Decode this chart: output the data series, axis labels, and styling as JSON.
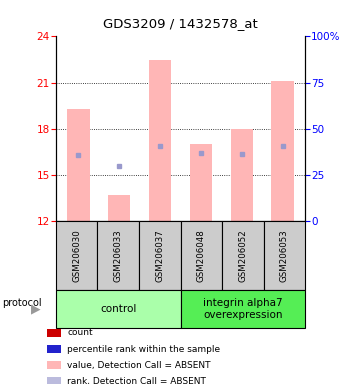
{
  "title": "GDS3209 / 1432578_at",
  "samples": [
    "GSM206030",
    "GSM206033",
    "GSM206037",
    "GSM206048",
    "GSM206052",
    "GSM206053"
  ],
  "bar_tops": [
    19.3,
    13.7,
    22.5,
    17.0,
    18.0,
    21.1
  ],
  "bar_bottom": 12,
  "blue_markers": [
    16.3,
    15.55,
    16.9,
    16.4,
    16.35,
    16.9
  ],
  "bar_color": "#FFB6B6",
  "blue_color": "#9999CC",
  "ylim_left": [
    12,
    24
  ],
  "ylim_right": [
    0,
    100
  ],
  "yticks_left": [
    12,
    15,
    18,
    21,
    24
  ],
  "yticks_right": [
    0,
    25,
    50,
    75,
    100
  ],
  "ytick_labels_right": [
    "0",
    "25",
    "50",
    "75",
    "100%"
  ],
  "groups": [
    {
      "label": "control",
      "indices": [
        0,
        1,
        2
      ],
      "color": "#AAFFAA"
    },
    {
      "label": "integrin alpha7\noverexpression",
      "indices": [
        3,
        4,
        5
      ],
      "color": "#55EE55"
    }
  ],
  "legend_colors": [
    "#CC0000",
    "#2222CC",
    "#FFB6B6",
    "#BBBBDD"
  ],
  "legend_labels": [
    "count",
    "percentile rank within the sample",
    "value, Detection Call = ABSENT",
    "rank, Detection Call = ABSENT"
  ],
  "background_color": "#FFFFFF",
  "box_bg": "#CCCCCC",
  "bar_width": 0.55
}
